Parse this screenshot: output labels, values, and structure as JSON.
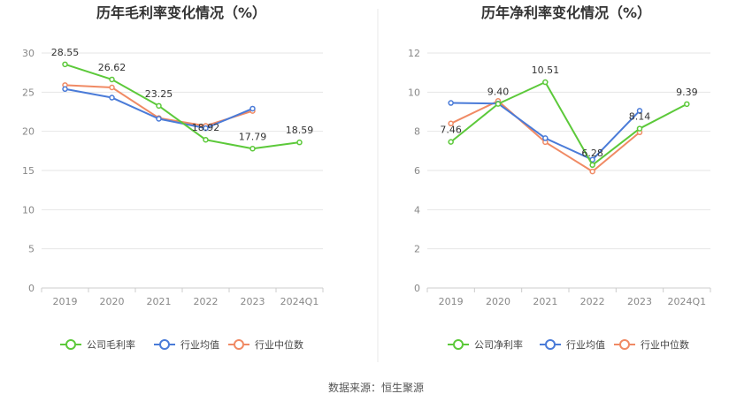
{
  "colors": {
    "company": "#5cc93a",
    "average": "#4a7bd8",
    "median": "#f08a64",
    "grid": "#e6e6e6",
    "axis": "#cccccc",
    "divider": "#e8e8e8"
  },
  "source_text": "数据来源：恒生聚源",
  "chart_data": [
    {
      "type": "line",
      "title": "历年毛利率变化情况（%）",
      "categories": [
        "2019",
        "2020",
        "2021",
        "2022",
        "2023",
        "2024Q1"
      ],
      "ylim": [
        0,
        30
      ],
      "yticks": [
        0,
        5,
        10,
        15,
        20,
        25,
        30
      ],
      "ytick_labels": [
        "0",
        "5",
        "10",
        "15",
        "20",
        "25",
        "30"
      ],
      "series": [
        {
          "name": "公司毛利率",
          "key": "company",
          "values": [
            28.55,
            26.62,
            23.25,
            18.92,
            17.79,
            18.59
          ],
          "labels": [
            "28.55",
            "26.62",
            "23.25",
            "18.92",
            "17.79",
            "18.59"
          ]
        },
        {
          "name": "行业均值",
          "key": "average",
          "values": [
            25.4,
            24.3,
            21.6,
            20.4,
            22.9,
            null
          ]
        },
        {
          "name": "行业中位数",
          "key": "median",
          "values": [
            25.9,
            25.6,
            21.7,
            20.7,
            22.6,
            null
          ]
        }
      ]
    },
    {
      "type": "line",
      "title": "历年净利率变化情况（%）",
      "categories": [
        "2019",
        "2020",
        "2021",
        "2022",
        "2023",
        "2024Q1"
      ],
      "ylim": [
        0,
        12
      ],
      "yticks": [
        0,
        2,
        4,
        6,
        8,
        10,
        12
      ],
      "ytick_labels": [
        "0",
        "2",
        "4",
        "6",
        "8",
        "10",
        "12"
      ],
      "series": [
        {
          "name": "公司净利率",
          "key": "company",
          "values": [
            7.46,
            9.4,
            10.51,
            6.28,
            8.14,
            9.39
          ],
          "labels": [
            "7.46",
            "9.40",
            "10.51",
            "6.28",
            "8.14",
            "9.39"
          ]
        },
        {
          "name": "行业均值",
          "key": "average",
          "values": [
            9.45,
            9.42,
            7.65,
            6.55,
            9.05,
            null
          ]
        },
        {
          "name": "行业中位数",
          "key": "median",
          "values": [
            8.4,
            9.55,
            7.45,
            5.95,
            7.95,
            null
          ]
        }
      ]
    }
  ]
}
